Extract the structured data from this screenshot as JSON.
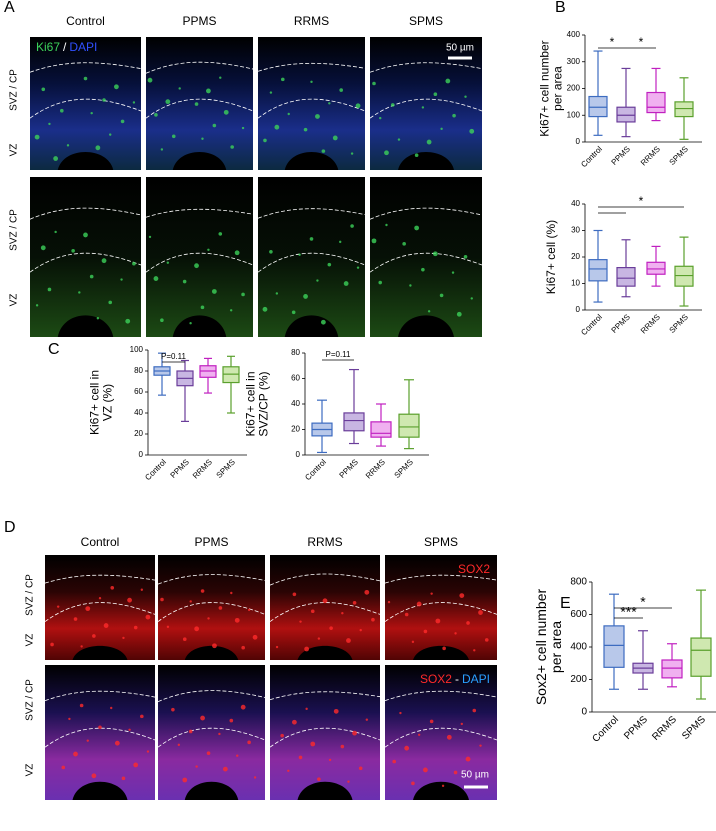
{
  "panel_labels": [
    "A",
    "B",
    "C",
    "D",
    "E"
  ],
  "panel_A": {
    "columns": [
      "Control",
      "PPMS",
      "RRMS",
      "SPMS"
    ],
    "row_labels": [
      "SVZ / CP",
      "VZ",
      "SVZ / CP",
      "VZ"
    ],
    "stain": [
      "Ki67",
      "/",
      "DAPI"
    ],
    "scale_bar": "50 µm"
  },
  "panel_D": {
    "columns": [
      "Control",
      "PPMS",
      "RRMS",
      "SPMS"
    ],
    "row_labels": [
      "SVZ / CP",
      "VZ",
      "SVZ / CP",
      "VZ"
    ],
    "stain_top": "SOX2",
    "stain_bottom": [
      "SOX2",
      "-",
      "DAPI"
    ],
    "scale_bar": "50 µm"
  },
  "chart_data": [
    {
      "type": "box",
      "ylabel": [
        "Ki67+ cell number",
        "per area"
      ],
      "categories": [
        "Control",
        "PPMS",
        "RRMS",
        "SPMS"
      ],
      "colors": [
        "#3d6cc0",
        "#6a3d9a",
        "#c020c0",
        "#5aa02c"
      ],
      "fill_colors": [
        "#b8c8ea",
        "#c8b6e2",
        "#f0b0f0",
        "#cfe8b0"
      ],
      "boxes": [
        {
          "min": 25,
          "q1": 95,
          "median": 130,
          "q3": 170,
          "max": 340
        },
        {
          "min": 20,
          "q1": 75,
          "median": 100,
          "q3": 130,
          "max": 275
        },
        {
          "min": 80,
          "q1": 110,
          "median": 130,
          "q3": 185,
          "max": 275
        },
        {
          "min": 10,
          "q1": 95,
          "median": 125,
          "q3": 150,
          "max": 240
        }
      ],
      "ylim": [
        0,
        400
      ],
      "yticks": [
        0,
        100,
        200,
        300,
        400
      ],
      "annotations": [
        {
          "from": "Control",
          "to": "PPMS",
          "label": "*"
        },
        {
          "from": "PPMS",
          "to": "RRMS",
          "label": "*"
        }
      ]
    },
    {
      "type": "box",
      "ylabel": [
        "Ki67+ cell (%)"
      ],
      "categories": [
        "Control",
        "PPMS",
        "RRMS",
        "SPMS"
      ],
      "colors": [
        "#3d6cc0",
        "#6a3d9a",
        "#c020c0",
        "#5aa02c"
      ],
      "fill_colors": [
        "#b8c8ea",
        "#c8b6e2",
        "#f0b0f0",
        "#cfe8b0"
      ],
      "boxes": [
        {
          "min": 3,
          "q1": 11,
          "median": 15.5,
          "q3": 19,
          "max": 30
        },
        {
          "min": 5,
          "q1": 9,
          "median": 12,
          "q3": 16,
          "max": 26.5
        },
        {
          "min": 9,
          "q1": 13.5,
          "median": 15.5,
          "q3": 18,
          "max": 24
        },
        {
          "min": 1.5,
          "q1": 9,
          "median": 13,
          "q3": 16.5,
          "max": 27.5
        }
      ],
      "ylim": [
        0,
        40
      ],
      "yticks": [
        0,
        10,
        20,
        30,
        40
      ],
      "annotations": [
        {
          "from": "Control",
          "to": "SPMS",
          "label": "*"
        },
        {
          "from": "Control",
          "to": "PPMS"
        }
      ]
    },
    {
      "type": "box",
      "ylabel": [
        "Ki67+ cell  in",
        "VZ (%)"
      ],
      "categories": [
        "Control",
        "PPMS",
        "RRMS",
        "SPMS"
      ],
      "colors": [
        "#3d6cc0",
        "#6a3d9a",
        "#c020c0",
        "#5aa02c"
      ],
      "fill_colors": [
        "#b8c8ea",
        "#c8b6e2",
        "#f0b0f0",
        "#cfe8b0"
      ],
      "boxes": [
        {
          "min": 57,
          "q1": 76,
          "median": 80,
          "q3": 84,
          "max": 97
        },
        {
          "min": 32,
          "q1": 66,
          "median": 73,
          "q3": 80,
          "max": 90
        },
        {
          "min": 59,
          "q1": 74,
          "median": 80,
          "q3": 85,
          "max": 92
        },
        {
          "min": 40,
          "q1": 69,
          "median": 77,
          "q3": 84,
          "max": 94
        }
      ],
      "ylim": [
        0,
        100
      ],
      "yticks": [
        0,
        20,
        40,
        60,
        80,
        100
      ],
      "annotations": [
        {
          "from": "Control",
          "to": "PPMS",
          "label": "P=0.11"
        }
      ]
    },
    {
      "type": "box",
      "ylabel": [
        "Ki67+ cell  in",
        "SVZ/CP (%)"
      ],
      "categories": [
        "Control",
        "PPMS",
        "RRMS",
        "SPMS"
      ],
      "colors": [
        "#3d6cc0",
        "#6a3d9a",
        "#c020c0",
        "#5aa02c"
      ],
      "fill_colors": [
        "#b8c8ea",
        "#c8b6e2",
        "#f0b0f0",
        "#cfe8b0"
      ],
      "boxes": [
        {
          "min": 2,
          "q1": 15,
          "median": 20,
          "q3": 25,
          "max": 43
        },
        {
          "min": 9,
          "q1": 19,
          "median": 27,
          "q3": 33,
          "max": 67
        },
        {
          "min": 7,
          "q1": 14,
          "median": 17,
          "q3": 26,
          "max": 40
        },
        {
          "min": 5,
          "q1": 14,
          "median": 22,
          "q3": 32,
          "max": 59
        }
      ],
      "ylim": [
        0,
        80
      ],
      "yticks": [
        0,
        20,
        40,
        60,
        80
      ],
      "annotations": [
        {
          "from": "Control",
          "to": "PPMS",
          "label": "P=0.11"
        }
      ]
    },
    {
      "type": "box",
      "ylabel": [
        "Sox2+ cell number",
        "per area"
      ],
      "categories": [
        "Control",
        "PPMS",
        "RRMS",
        "SPMS"
      ],
      "colors": [
        "#3d6cc0",
        "#6a3d9a",
        "#c020c0",
        "#5aa02c"
      ],
      "fill_colors": [
        "#b8c8ea",
        "#c8b6e2",
        "#f0b0f0",
        "#cfe8b0"
      ],
      "boxes": [
        {
          "min": 140,
          "q1": 275,
          "median": 410,
          "q3": 530,
          "max": 725
        },
        {
          "min": 140,
          "q1": 240,
          "median": 270,
          "q3": 300,
          "max": 500
        },
        {
          "min": 155,
          "q1": 210,
          "median": 270,
          "q3": 320,
          "max": 420
        },
        {
          "min": 80,
          "q1": 220,
          "median": 380,
          "q3": 455,
          "max": 750
        }
      ],
      "ylim": [
        0,
        800
      ],
      "yticks": [
        0,
        200,
        400,
        600,
        800
      ],
      "annotations": [
        {
          "from": "Control",
          "to": "PPMS",
          "label": "***"
        },
        {
          "from": "Control",
          "to": "RRMS",
          "label": "*"
        }
      ]
    }
  ]
}
